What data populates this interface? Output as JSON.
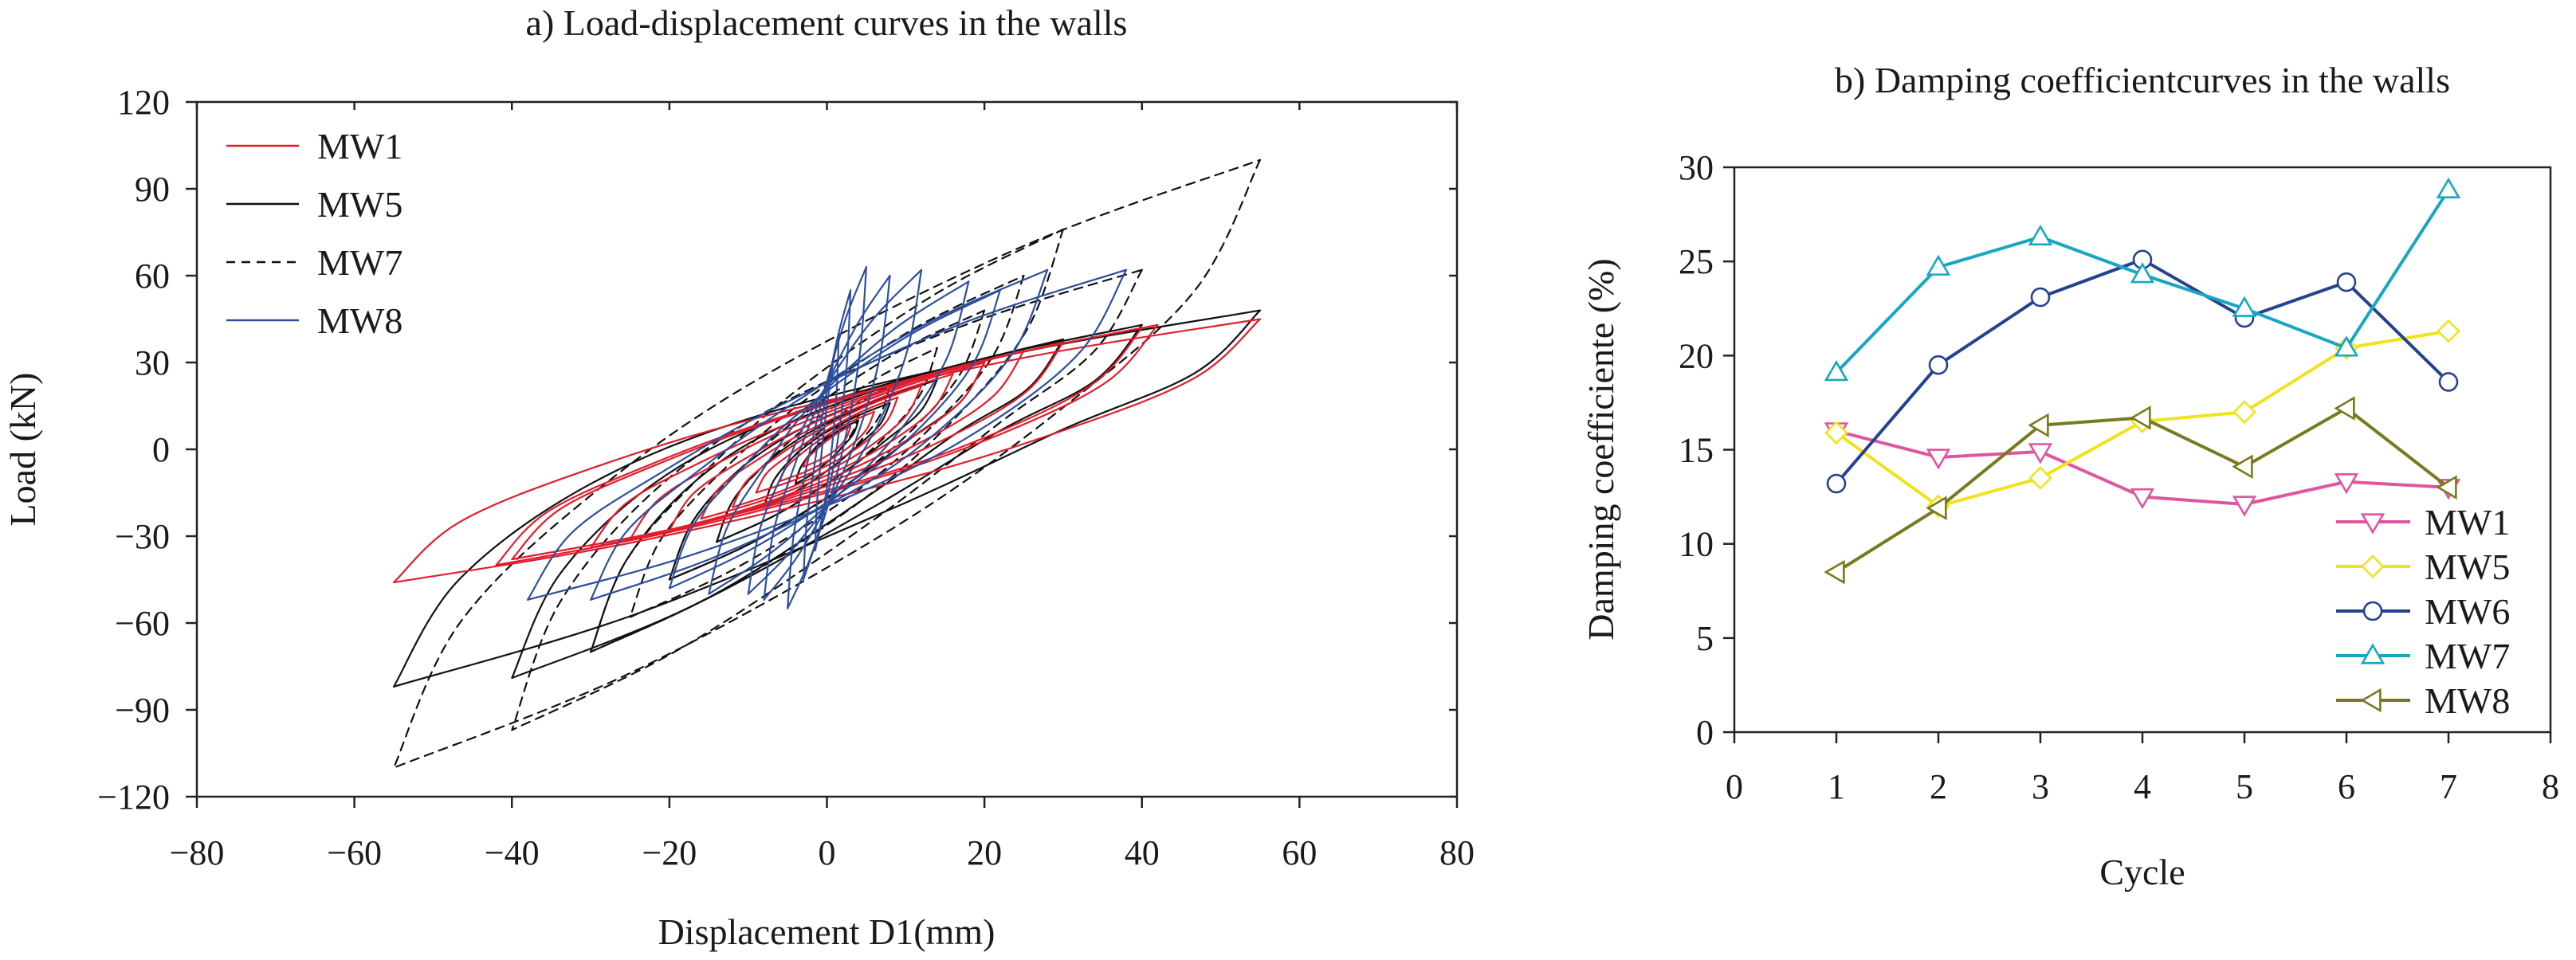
{
  "chart_data": [
    {
      "type": "line",
      "title": "a) Load-displacement curves in the walls",
      "xlabel": "Displacement D1(mm)",
      "ylabel": "Load (kN)",
      "xlim": [
        -80,
        80
      ],
      "ylim": [
        -120,
        120
      ],
      "xticks": [
        "−80",
        "−60",
        "−40",
        "−20",
        "0",
        "20",
        "40",
        "60",
        "80"
      ],
      "yticks": [
        "−120",
        "−90",
        "−60",
        "−30",
        "0",
        "30",
        "60",
        "90",
        "120"
      ],
      "grid": false,
      "legend": "top-left",
      "series": [
        {
          "name": "MW1",
          "color": "#e11d2c",
          "line": "solid",
          "loops": [
            {
              "pos": [
                3,
                8
              ],
              "neg": [
                -3,
                -6
              ]
            },
            {
              "pos": [
                6,
                13
              ],
              "neg": [
                -6,
                -11
              ]
            },
            {
              "pos": [
                9,
                18
              ],
              "neg": [
                -9,
                -15
              ]
            },
            {
              "pos": [
                12,
                22
              ],
              "neg": [
                -12,
                -20
              ]
            },
            {
              "pos": [
                16,
                26
              ],
              "neg": [
                -16,
                -24
              ]
            },
            {
              "pos": [
                20,
                30
              ],
              "neg": [
                -20,
                -28
              ]
            },
            {
              "pos": [
                25,
                34
              ],
              "neg": [
                -25,
                -31
              ]
            },
            {
              "pos": [
                30,
                37
              ],
              "neg": [
                -30,
                -34
              ]
            },
            {
              "pos": [
                40,
                42
              ],
              "neg": [
                -40,
                -38
              ]
            },
            {
              "pos": [
                42,
                43
              ],
              "neg": [
                -42,
                -40
              ]
            },
            {
              "pos": [
                55,
                45
              ],
              "neg": [
                -55,
                -46
              ]
            }
          ]
        },
        {
          "name": "MW5",
          "color": "#111111",
          "line": "solid",
          "loops": [
            {
              "pos": [
                4,
                10
              ],
              "neg": [
                -4,
                -12
              ]
            },
            {
              "pos": [
                8,
                16
              ],
              "neg": [
                -8,
                -20
              ]
            },
            {
              "pos": [
                14,
                24
              ],
              "neg": [
                -14,
                -32
              ]
            },
            {
              "pos": [
                20,
                30
              ],
              "neg": [
                -20,
                -45
              ]
            },
            {
              "pos": [
                30,
                38
              ],
              "neg": [
                -30,
                -70
              ]
            },
            {
              "pos": [
                40,
                43
              ],
              "neg": [
                -40,
                -79
              ]
            },
            {
              "pos": [
                55,
                48
              ],
              "neg": [
                -55,
                -82
              ]
            }
          ]
        },
        {
          "name": "MW7",
          "color": "#111111",
          "line": "dashed",
          "loops": [
            {
              "pos": [
                4,
                12
              ],
              "neg": [
                -4,
                -12
              ]
            },
            {
              "pos": [
                8,
                22
              ],
              "neg": [
                -8,
                -20
              ]
            },
            {
              "pos": [
                14,
                35
              ],
              "neg": [
                -14,
                -32
              ]
            },
            {
              "pos": [
                20,
                48
              ],
              "neg": [
                -20,
                -45
              ]
            },
            {
              "pos": [
                25,
                60
              ],
              "neg": [
                -25,
                -58
              ]
            },
            {
              "pos": [
                30,
                76
              ],
              "neg": [
                -30,
                -70
              ]
            },
            {
              "pos": [
                40,
                62
              ],
              "neg": [
                -40,
                -97
              ]
            },
            {
              "pos": [
                55,
                100
              ],
              "neg": [
                -55,
                -110
              ]
            }
          ]
        },
        {
          "name": "MW8",
          "color": "#2d4f9e",
          "line": "solid",
          "loops": [
            {
              "pos": [
                1.5,
                40
              ],
              "neg": [
                -1.5,
                -35
              ]
            },
            {
              "pos": [
                3,
                55
              ],
              "neg": [
                -3,
                -45
              ]
            },
            {
              "pos": [
                5,
                63
              ],
              "neg": [
                -5,
                -55
              ]
            },
            {
              "pos": [
                8,
                60
              ],
              "neg": [
                -8,
                -52
              ]
            },
            {
              "pos": [
                12,
                62
              ],
              "neg": [
                -10,
                -50
              ]
            },
            {
              "pos": [
                18,
                58
              ],
              "neg": [
                -15,
                -50
              ]
            },
            {
              "pos": [
                22,
                55
              ],
              "neg": [
                -20,
                -48
              ]
            },
            {
              "pos": [
                28,
                62
              ],
              "neg": [
                -30,
                -52
              ]
            },
            {
              "pos": [
                38,
                62
              ],
              "neg": [
                -38,
                -52
              ]
            }
          ]
        }
      ]
    },
    {
      "type": "line",
      "title": "b) Damping coefficientcurves in the walls",
      "xlabel": "Cycle",
      "ylabel": "Damping coefficiente (%)",
      "xlim": [
        0,
        8
      ],
      "ylim": [
        0,
        30
      ],
      "xticks": [
        "0",
        "1",
        "2",
        "3",
        "4",
        "5",
        "6",
        "7",
        "8"
      ],
      "yticks": [
        "0",
        "5",
        "10",
        "15",
        "20",
        "25",
        "30"
      ],
      "grid": false,
      "legend": "bottom-right",
      "x": [
        1,
        2,
        3,
        4,
        5,
        6,
        7
      ],
      "series": [
        {
          "name": "MW1",
          "color": "#e0559f",
          "marker": "triangle-down",
          "values": [
            16.0,
            14.6,
            14.9,
            12.5,
            12.1,
            13.3,
            13.0
          ]
        },
        {
          "name": "MW5",
          "color": "#f0e31c",
          "marker": "diamond",
          "values": [
            15.9,
            12.0,
            13.5,
            16.5,
            17.0,
            20.4,
            21.3
          ]
        },
        {
          "name": "MW6",
          "color": "#24428f",
          "marker": "circle",
          "values": [
            13.2,
            19.5,
            23.1,
            25.1,
            22.0,
            23.9,
            18.6
          ]
        },
        {
          "name": "MW7",
          "color": "#18a6c2",
          "marker": "triangle-up",
          "values": [
            19.1,
            24.7,
            26.3,
            24.3,
            22.5,
            20.4,
            28.8
          ]
        },
        {
          "name": "MW8",
          "color": "#787a1f",
          "marker": "triangle-left",
          "values": [
            8.5,
            11.9,
            16.3,
            16.7,
            14.1,
            17.2,
            13.0
          ]
        }
      ]
    }
  ]
}
